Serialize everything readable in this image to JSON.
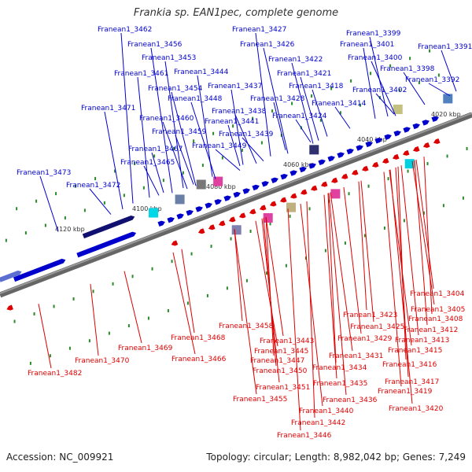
{
  "title": "Frankia sp. EAN1pec, complete genome",
  "accession": "Accession: NC_009921",
  "summary": "Topology: circular; Length: 8,982,042 bp; Genes: 7,249",
  "colors": {
    "forward": "#0000cc",
    "reverse": "#dd0000",
    "backbone": "#666666",
    "tick": "#2a8a2a"
  },
  "ticks": [
    "4020 kbp",
    "4040 kbp",
    "4060 kbp",
    "4080 kbp",
    "4100 kbp",
    "4120 kbp"
  ],
  "forward_genes": [
    "Franean1_3462",
    "Franean1_3427",
    "Franean1_3399",
    "Franean1_3456",
    "Franean1_3426",
    "Franean1_3401",
    "Franean1_3391",
    "Franean1_3453",
    "Franean1_3422",
    "Franean1_3400",
    "Franean1_3461",
    "Franean1_3444",
    "Franean1_3421",
    "Franean1_3398",
    "Franean1_3454",
    "Franean1_3437",
    "Franean1_3418",
    "Franean1_3402",
    "Franean1_3392",
    "Franean1_3448",
    "Franean1_3428",
    "Franean1_3414",
    "Franean1_3471",
    "Franean1_3438",
    "Franean1_3460",
    "Franean1_3441",
    "Franean1_3424",
    "Franean1_3459",
    "Franean1_3439",
    "Franean1_3449",
    "Franean1_3467",
    "Franean1_3465",
    "Franean1_3473",
    "Franean1_3472"
  ],
  "reverse_genes": [
    "Franean1_3458",
    "Franean1_3468",
    "Franean1_3469",
    "Franean1_3466",
    "Franean1_3470",
    "Franean1_3482",
    "Franean1_3443",
    "Franean1_3445",
    "Franean1_3447",
    "Franean1_3450",
    "Franean1_3451",
    "Franean1_3455",
    "Franean1_3423",
    "Franean1_3425",
    "Franean1_3429",
    "Franean1_3431",
    "Franean1_3434",
    "Franean1_3435",
    "Franean1_3436",
    "Franean1_3440",
    "Franean1_3442",
    "Franean1_3446",
    "Franean1_3404",
    "Franean1_3405",
    "Franean1_3408",
    "Franean1_3412",
    "Franean1_3413",
    "Franean1_3415",
    "Franean1_3416",
    "Franean1_3417",
    "Franean1_3419",
    "Franean1_3420"
  ]
}
